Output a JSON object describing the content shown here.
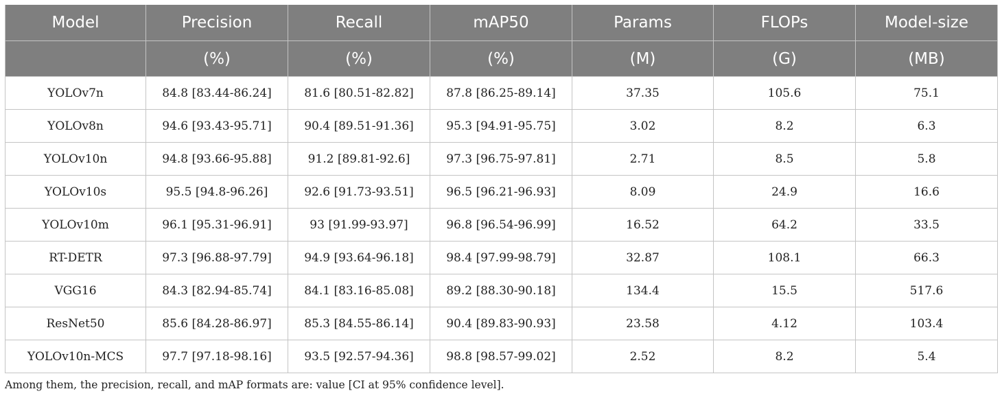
{
  "table": {
    "headers": [
      {
        "label": "Model",
        "unit": ""
      },
      {
        "label": "Precision",
        "unit": "(%)"
      },
      {
        "label": "Recall",
        "unit": "(%)"
      },
      {
        "label": "mAP50",
        "unit": "(%)"
      },
      {
        "label": "Params",
        "unit": "(M)"
      },
      {
        "label": "FLOPs",
        "unit": "(G)"
      },
      {
        "label": "Model-size",
        "unit": "(MB)"
      }
    ],
    "rows": [
      {
        "model": "YOLOv7n",
        "precision": "84.8 [83.44-86.24]",
        "recall": "81.6 [80.51-82.82]",
        "map50": "87.8 [86.25-89.14]",
        "params": "37.35",
        "flops": "105.6",
        "size": "75.1"
      },
      {
        "model": "YOLOv8n",
        "precision": "94.6 [93.43-95.71]",
        "recall": "90.4 [89.51-91.36]",
        "map50": "95.3 [94.91-95.75]",
        "params": "3.02",
        "flops": "8.2",
        "size": "6.3"
      },
      {
        "model": "YOLOv10n",
        "precision": "94.8 [93.66-95.88]",
        "recall": "91.2 [89.81-92.6]",
        "map50": "97.3 [96.75-97.81]",
        "params": "2.71",
        "flops": "8.5",
        "size": "5.8"
      },
      {
        "model": "YOLOv10s",
        "precision": "95.5 [94.8-96.26]",
        "recall": "92.6 [91.73-93.51]",
        "map50": "96.5 [96.21-96.93]",
        "params": "8.09",
        "flops": "24.9",
        "size": "16.6"
      },
      {
        "model": "YOLOv10m",
        "precision": "96.1 [95.31-96.91]",
        "recall": "93 [91.99-93.97]",
        "map50": "96.8 [96.54-96.99]",
        "params": "16.52",
        "flops": "64.2",
        "size": "33.5"
      },
      {
        "model": "RT-DETR",
        "precision": "97.3 [96.88-97.79]",
        "recall": "94.9 [93.64-96.18]",
        "map50": "98.4 [97.99-98.79]",
        "params": "32.87",
        "flops": "108.1",
        "size": "66.3"
      },
      {
        "model": "VGG16",
        "precision": "84.3 [82.94-85.74]",
        "recall": "84.1 [83.16-85.08]",
        "map50": "89.2 [88.30-90.18]",
        "params": "134.4",
        "flops": "15.5",
        "size": "517.6"
      },
      {
        "model": "ResNet50",
        "precision": "85.6 [84.28-86.97]",
        "recall": "85.3 [84.55-86.14]",
        "map50": "90.4 [89.83-90.93]",
        "params": "23.58",
        "flops": "4.12",
        "size": "103.4"
      },
      {
        "model": "YOLOv10n-MCS",
        "precision": "97.7 [97.18-98.16]",
        "recall": "93.5 [92.57-94.36]",
        "map50": "98.8 [98.57-99.02]",
        "params": "2.52",
        "flops": "8.2",
        "size": "5.4"
      }
    ]
  },
  "footnote": "Among them, the precision, recall, and mAP formats are: value [CI at 95% confidence level].",
  "colors": {
    "header_bg": "#7f7f7f",
    "header_text": "#ffffff",
    "grid": "#c4c4c4"
  }
}
